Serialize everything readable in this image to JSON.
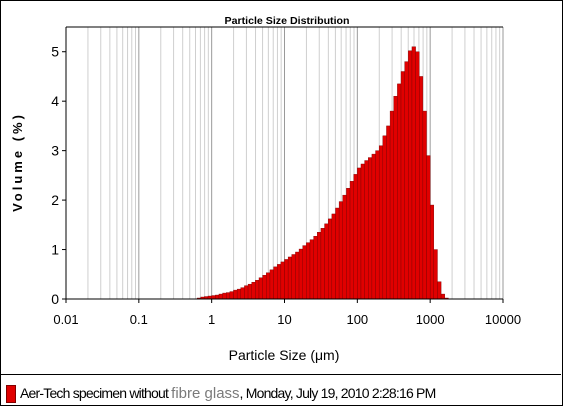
{
  "chart_data": {
    "type": "bar",
    "title": "Particle Size Distribution",
    "xlabel": "Particle Size (μm)",
    "ylabel": "Volume (%)",
    "xscale": "log",
    "xlim": [
      0.01,
      10000
    ],
    "ylim": [
      0,
      5.5
    ],
    "xticks": [
      "0.01",
      "0.1",
      "1",
      "10",
      "100",
      "1000",
      "10000"
    ],
    "yticks": [
      "0",
      "1",
      "2",
      "3",
      "4",
      "5"
    ],
    "grid": true,
    "legend_position": "bottom",
    "bar_color": "#e00000",
    "bin_edges": [
      0.631,
      0.708,
      0.794,
      0.891,
      1,
      1.122,
      1.259,
      1.413,
      1.585,
      1.778,
      1.995,
      2.239,
      2.512,
      2.818,
      3.162,
      3.548,
      3.981,
      4.467,
      5.012,
      5.623,
      6.31,
      7.079,
      7.943,
      8.913,
      10,
      11.22,
      12.59,
      14.13,
      15.85,
      17.78,
      19.95,
      22.39,
      25.12,
      28.18,
      31.62,
      35.48,
      39.81,
      44.67,
      50.12,
      56.23,
      63.1,
      70.79,
      79.43,
      89.13,
      100,
      112.2,
      125.9,
      141.3,
      158.5,
      177.8,
      199.5,
      223.9,
      251.2,
      281.8,
      316.2,
      354.8,
      398.1,
      446.7,
      501.2,
      562.3,
      631,
      707.9,
      794.3,
      891.3,
      1000,
      1122,
      1259,
      1413,
      1585,
      1778,
      1995
    ],
    "values": [
      0.02,
      0.04,
      0.05,
      0.06,
      0.07,
      0.08,
      0.1,
      0.12,
      0.13,
      0.15,
      0.18,
      0.2,
      0.23,
      0.27,
      0.3,
      0.34,
      0.38,
      0.43,
      0.48,
      0.53,
      0.59,
      0.65,
      0.7,
      0.75,
      0.8,
      0.85,
      0.9,
      0.95,
      1.01,
      1.08,
      1.14,
      1.2,
      1.27,
      1.35,
      1.43,
      1.52,
      1.62,
      1.72,
      1.84,
      1.97,
      2.1,
      2.24,
      2.38,
      2.52,
      2.65,
      2.73,
      2.8,
      2.86,
      2.93,
      3.0,
      3.1,
      3.3,
      3.5,
      3.8,
      4.1,
      4.35,
      4.6,
      4.8,
      5.02,
      5.1,
      5.0,
      4.5,
      3.8,
      2.9,
      1.9,
      1.0,
      0.35,
      0.1,
      0.02,
      0.0
    ]
  },
  "legend": {
    "series_part1": "Aer-Tech specimen without ",
    "series_part2": "fibre glass",
    "series_part3": ", Monday, July 19, 2010 2:28:16 PM"
  }
}
